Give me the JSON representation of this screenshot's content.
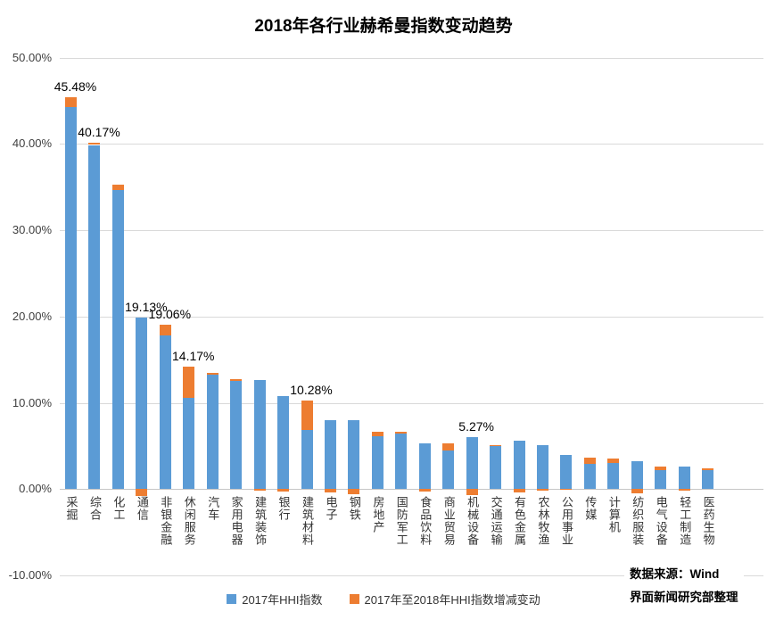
{
  "chart_data": {
    "type": "bar",
    "stacked": true,
    "title": "2018年各行业赫希曼指数变动趋势",
    "categories": [
      "采掘",
      "综合",
      "化工",
      "通信",
      "非银金融",
      "休闲服务",
      "汽车",
      "家用电器",
      "建筑装饰",
      "银行",
      "建筑材料",
      "电子",
      "钢铁",
      "房地产",
      "国防军工",
      "食品饮料",
      "商业贸易",
      "机械设备",
      "交通运输",
      "有色金属",
      "农林牧渔",
      "公用事业",
      "传媒",
      "计算机",
      "纺织服装",
      "电气设备",
      "轻工制造",
      "医药生物"
    ],
    "series": [
      {
        "name": "2017年HHI指数",
        "color": "#5B9BD5",
        "values": [
          44.3,
          39.9,
          34.7,
          19.89,
          17.82,
          10.6,
          13.28,
          12.57,
          12.7,
          10.8,
          6.85,
          8.05,
          8.0,
          6.1,
          6.45,
          5.3,
          4.45,
          6.0,
          4.95,
          5.67,
          5.15,
          3.95,
          2.95,
          3.05,
          3.2,
          2.25,
          2.65,
          2.2
        ]
      },
      {
        "name": "2017年至2018年HHI指数增减变动",
        "color": "#ED7D31",
        "values": [
          1.18,
          0.27,
          0.55,
          -0.76,
          1.24,
          3.57,
          0.25,
          0.2,
          -0.2,
          -0.25,
          3.43,
          -0.4,
          -0.6,
          0.6,
          0.25,
          -0.25,
          0.85,
          -0.73,
          0.2,
          -0.4,
          -0.2,
          -0.1,
          0.75,
          0.5,
          -0.45,
          0.4,
          -0.15,
          0.25
        ]
      }
    ],
    "data_labels": [
      "45.48%",
      "40.17%",
      "",
      "19.13%",
      "19.06%",
      "14.17%",
      "",
      "",
      "",
      "",
      "10.28%",
      "",
      "",
      "",
      "",
      "",
      "",
      "5.27%",
      "",
      "",
      "",
      "",
      "",
      "",
      "",
      "",
      "",
      ""
    ],
    "xlabel": "",
    "ylabel": "",
    "y_axis": {
      "min": -10,
      "max": 50,
      "step": 10,
      "tick_labels": [
        "50.00%",
        "40.00%",
        "30.00%",
        "20.00%",
        "10.00%",
        "0.00%",
        "-10.00%"
      ]
    },
    "grid": "horizontal",
    "legend_position": "bottom"
  },
  "source": {
    "line1": "数据来源：Wind",
    "line2": "界面新闻研究部整理"
  },
  "colors": {
    "bar_2017": "#5B9BD5",
    "bar_change": "#ED7D31",
    "gridline": "#D9D9D9",
    "axis_line": "#C6C6C6"
  }
}
